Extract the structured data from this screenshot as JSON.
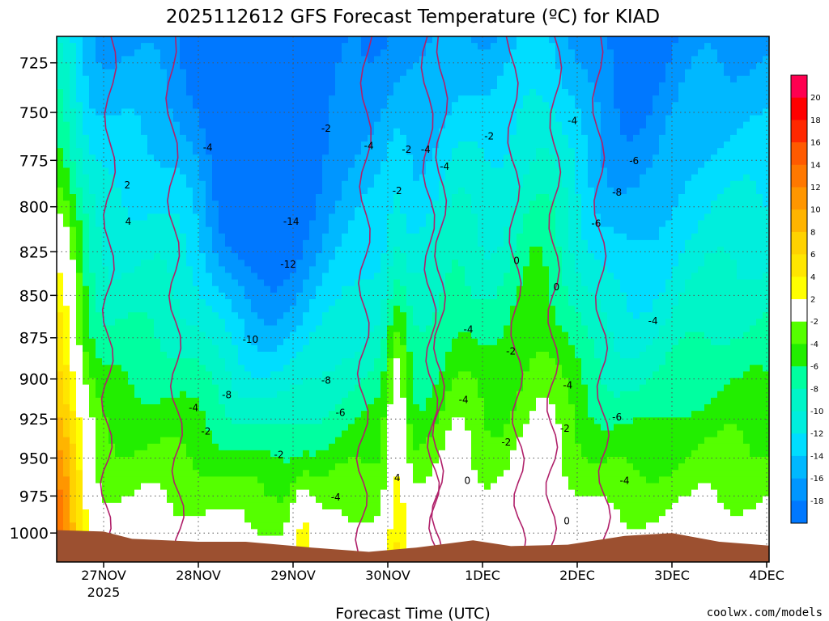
{
  "title": "2025112612 GFS Forecast Temperature (ºC) for KIAD",
  "credit": "coolwx.com/models",
  "colors": {
    "credit": "#e05050",
    "terrain": "#9c5030",
    "freezing_line": "#b0206a",
    "contour": "#000000"
  },
  "chart_data": {
    "type": "heatmap",
    "title": "2025112612 GFS Forecast Temperature (ºC) for KIAD",
    "xlabel": "Forecast Time (UTC)",
    "ylabel": "",
    "x_ticks": [
      "27NOV",
      "28NOV",
      "29NOV",
      "30NOV",
      "1DEC",
      "2DEC",
      "3DEC",
      "4DEC"
    ],
    "x_year_label": "2025",
    "y_ticks": [
      725,
      750,
      775,
      800,
      825,
      850,
      875,
      900,
      925,
      950,
      975,
      1000
    ],
    "y_range_hpa": [
      712,
      1020
    ],
    "y_scale": "log-pressure",
    "grid": true,
    "colorbar": {
      "levels": [
        20,
        18,
        16,
        14,
        12,
        10,
        8,
        6,
        4,
        2,
        -2,
        -4,
        -6,
        -8,
        -10,
        -12,
        -14,
        -16,
        -18
      ],
      "colors": [
        "#ff0050",
        "#ff0000",
        "#ff2800",
        "#ff5a00",
        "#ff7800",
        "#ff9600",
        "#ffb400",
        "#ffd200",
        "#ffe600",
        "#ffff00",
        "#ffffff",
        "#55ff00",
        "#22ee00",
        "#00ffa0",
        "#00f5c8",
        "#00eedd",
        "#00ddff",
        "#00b8ff",
        "#0096ff",
        "#0078ff"
      ]
    },
    "contour_labels": [
      {
        "text": "2",
        "day": 0.25,
        "p": 790
      },
      {
        "text": "4",
        "day": 0.26,
        "p": 810
      },
      {
        "text": "-4",
        "day": 1.1,
        "p": 770
      },
      {
        "text": "-2",
        "day": 1.08,
        "p": 935
      },
      {
        "text": "-4",
        "day": 0.95,
        "p": 920
      },
      {
        "text": "-14",
        "day": 1.98,
        "p": 810
      },
      {
        "text": "-12",
        "day": 1.95,
        "p": 834
      },
      {
        "text": "-10",
        "day": 1.55,
        "p": 878
      },
      {
        "text": "-8",
        "day": 1.3,
        "p": 912
      },
      {
        "text": "-8",
        "day": 2.35,
        "p": 903
      },
      {
        "text": "-6",
        "day": 2.5,
        "p": 923
      },
      {
        "text": "-2",
        "day": 1.85,
        "p": 950
      },
      {
        "text": "-4",
        "day": 2.45,
        "p": 978
      },
      {
        "text": "-2",
        "day": 2.35,
        "p": 760
      },
      {
        "text": "-4",
        "day": 2.8,
        "p": 769
      },
      {
        "text": "-2",
        "day": 3.2,
        "p": 771
      },
      {
        "text": "-4",
        "day": 3.4,
        "p": 771
      },
      {
        "text": "-2",
        "day": 3.1,
        "p": 793
      },
      {
        "text": "-4",
        "day": 3.6,
        "p": 780
      },
      {
        "text": "-2",
        "day": 4.07,
        "p": 764
      },
      {
        "text": "4",
        "day": 3.1,
        "p": 965
      },
      {
        "text": "-4",
        "day": 3.85,
        "p": 872
      },
      {
        "text": "-2",
        "day": 4.3,
        "p": 885
      },
      {
        "text": "-4",
        "day": 3.8,
        "p": 915
      },
      {
        "text": "-2",
        "day": 4.25,
        "p": 942
      },
      {
        "text": "0",
        "day": 3.84,
        "p": 967
      },
      {
        "text": "0",
        "day": 4.36,
        "p": 832
      },
      {
        "text": "0",
        "day": 4.78,
        "p": 847
      },
      {
        "text": "-4",
        "day": 4.95,
        "p": 756
      },
      {
        "text": "-6",
        "day": 5.2,
        "p": 811
      },
      {
        "text": "-8",
        "day": 5.42,
        "p": 794
      },
      {
        "text": "-6",
        "day": 5.6,
        "p": 777
      },
      {
        "text": "-4",
        "day": 5.8,
        "p": 867
      },
      {
        "text": "-4",
        "day": 4.9,
        "p": 906
      },
      {
        "text": "-2",
        "day": 4.87,
        "p": 933
      },
      {
        "text": "-6",
        "day": 5.42,
        "p": 926
      },
      {
        "text": "-4",
        "day": 5.5,
        "p": 967
      },
      {
        "text": "0",
        "day": 4.89,
        "p": 994
      }
    ]
  }
}
